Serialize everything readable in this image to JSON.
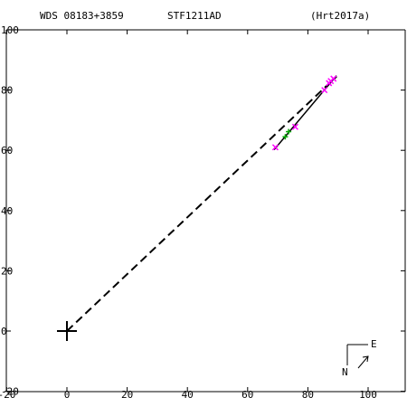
{
  "header": {
    "left": "WDS 08183+3859",
    "center": "STF1211AD",
    "right": "(Hrt2017a)"
  },
  "compass": {
    "north": "N",
    "east": "E"
  },
  "chart_data": {
    "type": "scatter",
    "xlim": [
      -20,
      112
    ],
    "ylim": [
      -20,
      102
    ],
    "x_ticks": [
      -20,
      0,
      20,
      40,
      60,
      80,
      100
    ],
    "y_ticks": [
      -20,
      0,
      20,
      40,
      60,
      80,
      100
    ],
    "grid": false,
    "primary_star": [
      0,
      0
    ],
    "orbit_line": [
      [
        0,
        0
      ],
      [
        89.5,
        84.5
      ]
    ],
    "fit_segment": [
      [
        68.8,
        60.2
      ],
      [
        89.5,
        84.8
      ]
    ],
    "series": [
      {
        "marker": "x",
        "color": "#ff00ff",
        "points": [
          [
            69.2,
            61.0
          ],
          [
            75.8,
            67.8
          ],
          [
            85.5,
            80.0
          ],
          [
            87.0,
            82.3
          ],
          [
            87.6,
            83.0
          ],
          [
            88.5,
            83.8
          ]
        ]
      },
      {
        "marker": "plus",
        "color": "#00aa00",
        "points": [
          [
            72.5,
            64.5
          ],
          [
            73.6,
            66.2
          ]
        ]
      }
    ],
    "colors": {
      "axis": "#000000",
      "measure_x": "#ff00ff",
      "measure_plus": "#00aa00"
    }
  }
}
